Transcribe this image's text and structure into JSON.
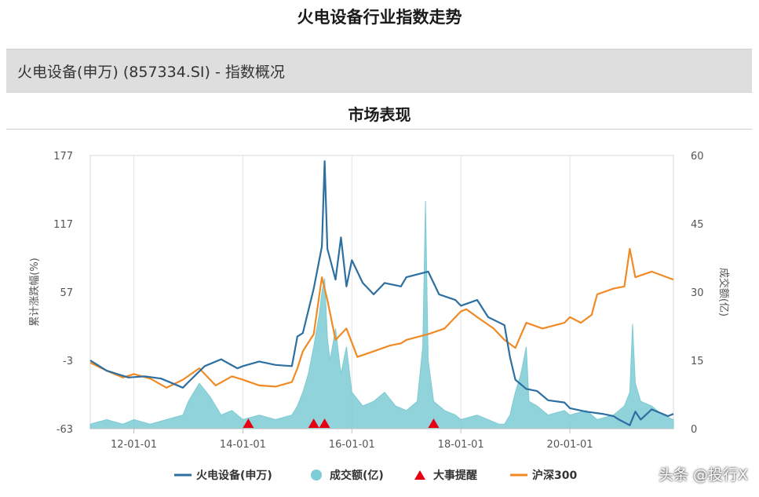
{
  "page": {
    "title": "火电设备行业指数走势",
    "section_header": "火电设备(申万) (857334.SI) - 指数概况",
    "subtitle": "市场表现",
    "watermark": "头条 @投行X"
  },
  "chart_data": {
    "type": "line",
    "title": "市场表现",
    "ylabel_left": "累计涨跌幅(%)",
    "ylabel_right": "成交额(亿)",
    "ylim_left": [
      -63,
      177
    ],
    "yticks_left": [
      "177",
      "117",
      "57",
      "-3",
      "-63"
    ],
    "ylim_right": [
      0,
      60
    ],
    "yticks_right": [
      "60",
      "45",
      "30",
      "15",
      "0"
    ],
    "xlim": [
      2011.2,
      2021.9
    ],
    "xticks": [
      {
        "label": "12-01-01",
        "x": 2012.0
      },
      {
        "label": "14-01-01",
        "x": 2014.0
      },
      {
        "label": "16-01-01",
        "x": 2016.0
      },
      {
        "label": "18-01-01",
        "x": 2018.0
      },
      {
        "label": "20-01-01",
        "x": 2020.0
      }
    ],
    "grid": "vertical",
    "legend_position": "bottom",
    "colors": {
      "index": "#2c6fa0",
      "volume": "#7dcbd4",
      "event": "#e60012",
      "hs300": "#f08a24"
    },
    "legend": [
      {
        "key": "index",
        "label": "火电设备(申万)",
        "shape": "line"
      },
      {
        "key": "volume",
        "label": "成交额(亿)",
        "shape": "circle"
      },
      {
        "key": "event",
        "label": "大事提醒",
        "shape": "triangle"
      },
      {
        "key": "hs300",
        "label": "沪深300",
        "shape": "line"
      }
    ],
    "series": [
      {
        "name": "火电设备(申万)",
        "axis": "left",
        "points": [
          [
            2011.2,
            -3
          ],
          [
            2011.5,
            -12
          ],
          [
            2011.9,
            -18
          ],
          [
            2012.2,
            -17
          ],
          [
            2012.5,
            -19
          ],
          [
            2012.9,
            -27
          ],
          [
            2013.0,
            -22
          ],
          [
            2013.3,
            -8
          ],
          [
            2013.6,
            -2
          ],
          [
            2013.9,
            -10
          ],
          [
            2014.0,
            -8
          ],
          [
            2014.3,
            -4
          ],
          [
            2014.6,
            -7
          ],
          [
            2014.9,
            -8
          ],
          [
            2015.0,
            18
          ],
          [
            2015.1,
            21
          ],
          [
            2015.3,
            60
          ],
          [
            2015.45,
            97
          ],
          [
            2015.5,
            172
          ],
          [
            2015.55,
            95
          ],
          [
            2015.7,
            68
          ],
          [
            2015.8,
            105
          ],
          [
            2015.9,
            62
          ],
          [
            2016.0,
            85
          ],
          [
            2016.2,
            65
          ],
          [
            2016.4,
            55
          ],
          [
            2016.6,
            65
          ],
          [
            2016.9,
            62
          ],
          [
            2017.0,
            70
          ],
          [
            2017.4,
            75
          ],
          [
            2017.6,
            55
          ],
          [
            2017.9,
            50
          ],
          [
            2018.0,
            45
          ],
          [
            2018.3,
            50
          ],
          [
            2018.5,
            35
          ],
          [
            2018.8,
            28
          ],
          [
            2018.9,
            0
          ],
          [
            2019.0,
            -20
          ],
          [
            2019.2,
            -28
          ],
          [
            2019.4,
            -30
          ],
          [
            2019.6,
            -38
          ],
          [
            2019.9,
            -40
          ],
          [
            2020.0,
            -45
          ],
          [
            2020.3,
            -48
          ],
          [
            2020.6,
            -50
          ],
          [
            2020.8,
            -52
          ],
          [
            2020.9,
            -55
          ],
          [
            2021.1,
            -60
          ],
          [
            2021.2,
            -48
          ],
          [
            2021.3,
            -55
          ],
          [
            2021.5,
            -46
          ],
          [
            2021.8,
            -52
          ],
          [
            2021.9,
            -50
          ]
        ]
      },
      {
        "name": "沪深300",
        "axis": "left",
        "points": [
          [
            2011.2,
            -5
          ],
          [
            2011.5,
            -12
          ],
          [
            2011.8,
            -18
          ],
          [
            2012.0,
            -15
          ],
          [
            2012.3,
            -19
          ],
          [
            2012.6,
            -27
          ],
          [
            2012.9,
            -20
          ],
          [
            2013.2,
            -10
          ],
          [
            2013.5,
            -25
          ],
          [
            2013.8,
            -17
          ],
          [
            2014.0,
            -20
          ],
          [
            2014.3,
            -25
          ],
          [
            2014.6,
            -26
          ],
          [
            2014.9,
            -22
          ],
          [
            2015.0,
            -10
          ],
          [
            2015.1,
            5
          ],
          [
            2015.3,
            20
          ],
          [
            2015.45,
            70
          ],
          [
            2015.55,
            50
          ],
          [
            2015.7,
            15
          ],
          [
            2015.9,
            25
          ],
          [
            2016.1,
            0
          ],
          [
            2016.4,
            5
          ],
          [
            2016.7,
            10
          ],
          [
            2016.9,
            12
          ],
          [
            2017.0,
            15
          ],
          [
            2017.4,
            20
          ],
          [
            2017.7,
            25
          ],
          [
            2017.9,
            35
          ],
          [
            2018.0,
            40
          ],
          [
            2018.1,
            42
          ],
          [
            2018.3,
            35
          ],
          [
            2018.6,
            25
          ],
          [
            2018.8,
            15
          ],
          [
            2019.0,
            8
          ],
          [
            2019.2,
            30
          ],
          [
            2019.5,
            25
          ],
          [
            2019.9,
            30
          ],
          [
            2020.0,
            35
          ],
          [
            2020.2,
            30
          ],
          [
            2020.4,
            37
          ],
          [
            2020.5,
            55
          ],
          [
            2020.8,
            60
          ],
          [
            2021.0,
            62
          ],
          [
            2021.1,
            95
          ],
          [
            2021.2,
            70
          ],
          [
            2021.5,
            75
          ],
          [
            2021.9,
            68
          ]
        ]
      }
    ],
    "volume": {
      "name": "成交额(亿)",
      "axis": "right",
      "points": [
        [
          2011.2,
          1
        ],
        [
          2011.5,
          2
        ],
        [
          2011.8,
          1
        ],
        [
          2012.0,
          2
        ],
        [
          2012.3,
          1
        ],
        [
          2012.6,
          2
        ],
        [
          2012.9,
          3
        ],
        [
          2013.0,
          6
        ],
        [
          2013.2,
          10
        ],
        [
          2013.4,
          7
        ],
        [
          2013.6,
          3
        ],
        [
          2013.8,
          4
        ],
        [
          2014.0,
          2
        ],
        [
          2014.3,
          3
        ],
        [
          2014.6,
          2
        ],
        [
          2014.9,
          3
        ],
        [
          2015.0,
          5
        ],
        [
          2015.1,
          8
        ],
        [
          2015.2,
          12
        ],
        [
          2015.3,
          18
        ],
        [
          2015.4,
          25
        ],
        [
          2015.45,
          30
        ],
        [
          2015.5,
          33
        ],
        [
          2015.55,
          20
        ],
        [
          2015.6,
          15
        ],
        [
          2015.7,
          22
        ],
        [
          2015.8,
          12
        ],
        [
          2015.9,
          18
        ],
        [
          2016.0,
          8
        ],
        [
          2016.2,
          5
        ],
        [
          2016.4,
          6
        ],
        [
          2016.6,
          8
        ],
        [
          2016.8,
          5
        ],
        [
          2017.0,
          4
        ],
        [
          2017.2,
          6
        ],
        [
          2017.3,
          18
        ],
        [
          2017.35,
          50
        ],
        [
          2017.4,
          15
        ],
        [
          2017.5,
          6
        ],
        [
          2017.7,
          4
        ],
        [
          2017.9,
          3
        ],
        [
          2018.0,
          2
        ],
        [
          2018.3,
          3
        ],
        [
          2018.5,
          2
        ],
        [
          2018.7,
          1
        ],
        [
          2018.8,
          1
        ],
        [
          2018.9,
          3
        ],
        [
          2019.0,
          8
        ],
        [
          2019.1,
          12
        ],
        [
          2019.2,
          18
        ],
        [
          2019.25,
          6
        ],
        [
          2019.4,
          5
        ],
        [
          2019.6,
          3
        ],
        [
          2019.9,
          4
        ],
        [
          2020.0,
          3
        ],
        [
          2020.3,
          4
        ],
        [
          2020.5,
          2
        ],
        [
          2020.8,
          3
        ],
        [
          2021.0,
          5
        ],
        [
          2021.1,
          8
        ],
        [
          2021.15,
          23
        ],
        [
          2021.2,
          10
        ],
        [
          2021.3,
          6
        ],
        [
          2021.5,
          5
        ],
        [
          2021.7,
          3
        ],
        [
          2021.9,
          2
        ]
      ]
    },
    "events": [
      2014.1,
      2015.3,
      2015.5,
      2017.5
    ]
  }
}
